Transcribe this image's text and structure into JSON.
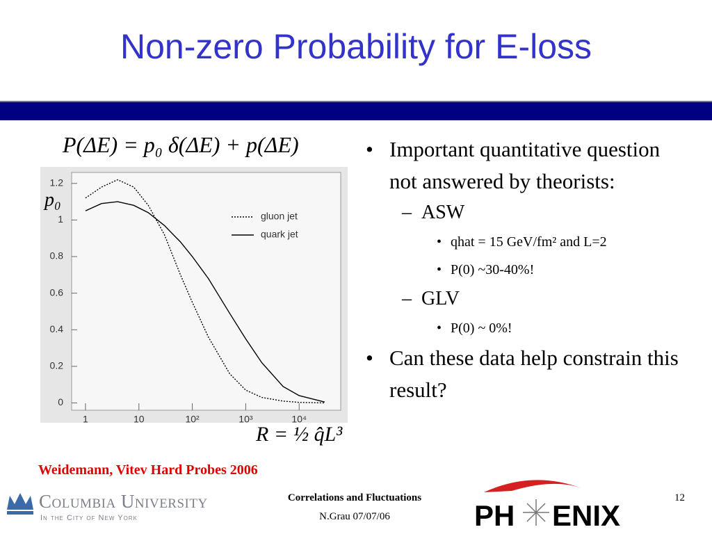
{
  "header": {
    "title": "Non-zero Probability for E-loss"
  },
  "formula": "P(ΔE) = p₀ δ(ΔE) + p(ΔE)",
  "chart_data": {
    "type": "line",
    "x": [
      1,
      2,
      4,
      8,
      15,
      30,
      60,
      100,
      200,
      500,
      1000,
      2000,
      5000,
      10000,
      30000
    ],
    "series": [
      {
        "name": "gluon jet",
        "color": "#000000",
        "style": "dotted",
        "values": [
          1.12,
          1.18,
          1.22,
          1.18,
          1.08,
          0.92,
          0.7,
          0.55,
          0.36,
          0.16,
          0.07,
          0.03,
          0.01,
          0.003,
          0
        ]
      },
      {
        "name": "quark jet",
        "color": "#000000",
        "style": "solid",
        "values": [
          1.05,
          1.09,
          1.1,
          1.08,
          1.04,
          0.97,
          0.88,
          0.8,
          0.68,
          0.49,
          0.35,
          0.22,
          0.09,
          0.04,
          0.005
        ]
      }
    ],
    "log_x": true,
    "xlim": [
      0.55,
      60000
    ],
    "ylim": [
      -0.04,
      1.26
    ],
    "xticks": [
      1,
      10,
      {
        "value": 100,
        "label": "10²"
      },
      {
        "value": 1000,
        "label": "10³"
      },
      {
        "value": 10000,
        "label": "10⁴"
      }
    ],
    "yticks": [
      0,
      0.2,
      0.4,
      0.6,
      0.8,
      1,
      1.2
    ],
    "ylabel": "p₀",
    "xlabel": "R = ½ q̂L³",
    "legend_position": "upper right"
  },
  "bullets": [
    {
      "text": "Important quantitative question not answered by theorists:",
      "children": [
        {
          "text": "ASW",
          "children": [
            {
              "text": "qhat = 15 GeV/fm² and L=2"
            },
            {
              "text": "P(0) ~30-40%!"
            }
          ]
        },
        {
          "text": "GLV",
          "children": [
            {
              "text": "P(0) ~ 0%!"
            }
          ]
        }
      ]
    },
    {
      "text": "Can these data help constrain this result?"
    }
  ],
  "citation": "Weidemann, Vitev Hard Probes 2006",
  "footer": {
    "institution": "Columbia University",
    "institution_subtitle": "In the City of New York",
    "talk": "Correlations and Fluctuations",
    "author_date": "N.Grau 07/07/06",
    "page_number": 12
  },
  "logo": {
    "left": "PH",
    "right": "ENIX"
  }
}
